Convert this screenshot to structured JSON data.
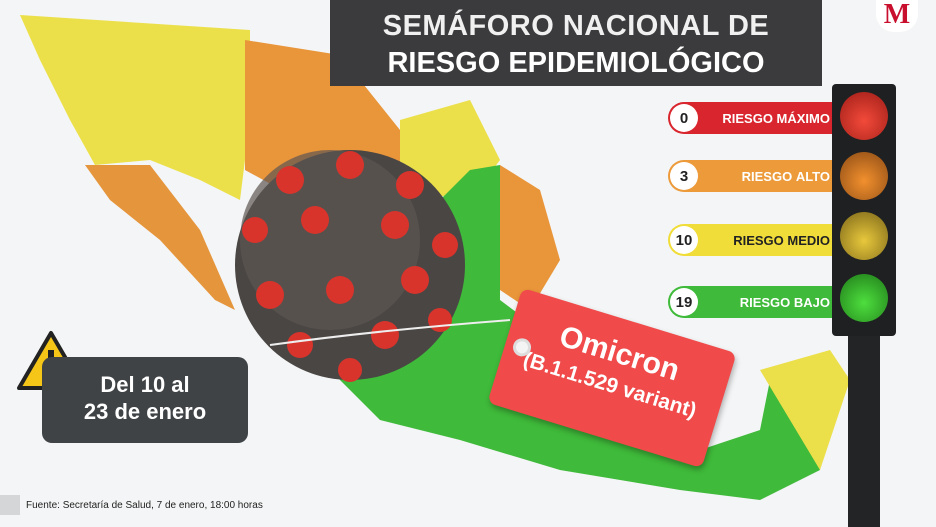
{
  "title": {
    "line1": "SEMÁFORO NACIONAL DE",
    "line2": "RIESGO EPIDEMIOLÓGICO"
  },
  "logo": "M",
  "legend": [
    {
      "count": "0",
      "label": "RIESGO ",
      "level": "MÁXIMO",
      "color": "#d9262e",
      "text_color": "#ffffff"
    },
    {
      "count": "3",
      "label": "RIESGO ",
      "level": "ALTO",
      "color": "#ec9a3a",
      "text_color": "#ffffff"
    },
    {
      "count": "10",
      "label": "RIESGO ",
      "level": "MEDIO",
      "color": "#f1dd3a",
      "text_color": "#222222"
    },
    {
      "count": "19",
      "label": "RIESGO ",
      "level": "BAJO",
      "color": "#3fba3a",
      "text_color": "#ffffff"
    }
  ],
  "date": {
    "line1_pre": "Del ",
    "line1_num": "10",
    "line1_post": " al",
    "line2": "23 de enero"
  },
  "tag": {
    "name": "Omicron",
    "variant": "(B.1.1.529 variant)"
  },
  "source": "Fuente: Secretaría de Salud, 7 de enero, 18:00 horas",
  "colors": {
    "red": "#d9262e",
    "orange": "#ec9a3a",
    "yellow": "#f1dd3a",
    "green": "#3fba3a",
    "dark": "#3b3b3d"
  },
  "icons": [
    "warning-icon",
    "traffic-light-icon",
    "virus-illustration"
  ]
}
